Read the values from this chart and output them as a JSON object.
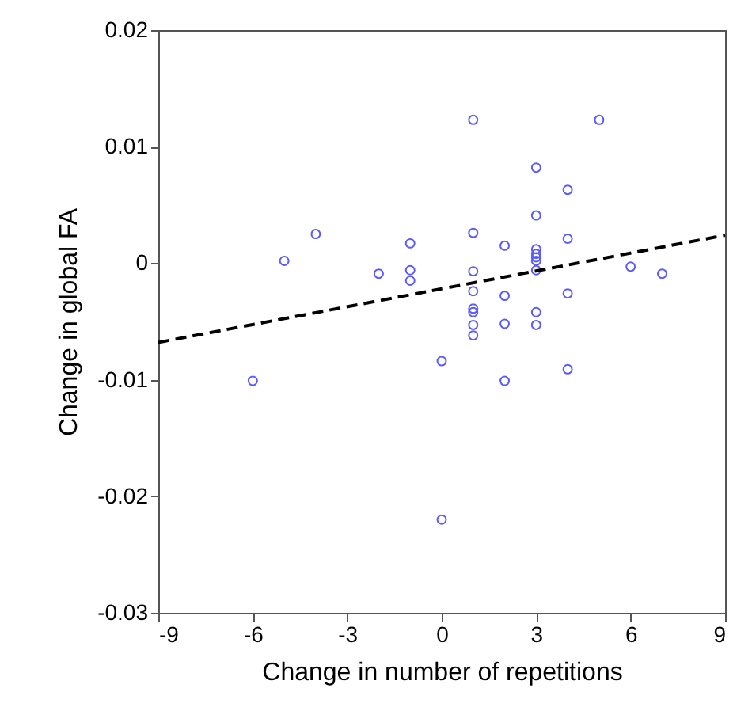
{
  "chart_data": {
    "type": "scatter",
    "xlabel": "Change in number of repetitions",
    "ylabel": "Change in global FA",
    "xlim": [
      -9,
      9
    ],
    "xticks": [
      -9,
      -6,
      -3,
      0,
      3,
      6,
      9
    ],
    "ylim": [
      -0.03,
      0.02
    ],
    "yticks": [
      {
        "value": -0.03,
        "label": "-0.03"
      },
      {
        "value": -0.02,
        "label": "-0.02"
      },
      {
        "value": -0.01,
        "label": "-0.01"
      },
      {
        "value": 0,
        "label": "0"
      },
      {
        "value": 0.01,
        "label": "0.01"
      },
      {
        "value": 0.02,
        "label": "0.02"
      }
    ],
    "grid": false,
    "series": [
      {
        "marker": "circle",
        "color": "#5a5aff",
        "x": [
          1,
          5,
          3,
          4,
          3,
          -4,
          -5,
          -1,
          1,
          2,
          4,
          3,
          3,
          3,
          3,
          3,
          -2,
          -1,
          -1,
          1,
          6,
          7,
          1,
          2,
          4,
          1,
          1,
          3,
          1,
          2,
          3,
          1,
          0,
          -6,
          2,
          4,
          0
        ],
        "values": [
          0.0123,
          0.0123,
          0.0082,
          0.0063,
          0.0041,
          0.0025,
          0.0002,
          0.0017,
          0.0026,
          0.0015,
          0.0021,
          0.0012,
          0.0008,
          0.0005,
          0.0002,
          -0.0006,
          -0.0009,
          -0.0006,
          -0.0015,
          -0.0007,
          -0.0003,
          -0.0009,
          -0.0024,
          -0.0028,
          -0.0026,
          -0.0039,
          -0.0042,
          -0.0042,
          -0.0053,
          -0.0052,
          -0.0053,
          -0.0062,
          -0.0084,
          -0.0101,
          -0.0101,
          -0.0091,
          -0.022
        ]
      },
      {
        "type": "line",
        "color": "#000000",
        "line_style": "dashed",
        "x": [
          -9,
          9
        ],
        "values": [
          -0.0068,
          0.0024
        ]
      }
    ]
  }
}
